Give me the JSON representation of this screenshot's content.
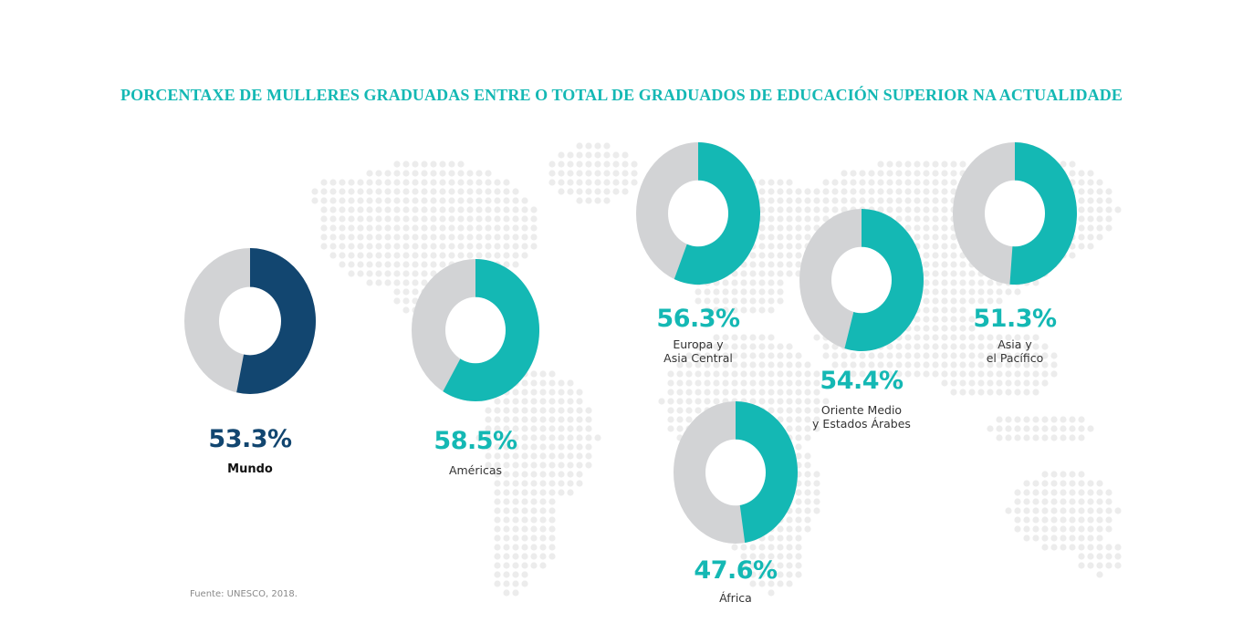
{
  "colors": {
    "title": "#14b8b4",
    "teal": "#14b8b4",
    "navy": "#124670",
    "gray": "#d2d3d5",
    "map_dot": "#ececec"
  },
  "chart_data": {
    "type": "pie",
    "title": "PORCENTAXE DE MULLERES GRADUADAS ENTRE O TOTAL DE GRADUADOS DE EDUCACIÓN SUPERIOR NA ACTUALIDADE",
    "series": [
      {
        "region": "Mundo",
        "label_lines": [
          "Mundo"
        ],
        "value": 53.3,
        "value_label": "53.3%",
        "color": "#124670"
      },
      {
        "region": "Américas",
        "label_lines": [
          "Américas"
        ],
        "value": 58.5,
        "value_label": "58.5%",
        "color": "#14b8b4"
      },
      {
        "region": "Europa y Asia Central",
        "label_lines": [
          "Europa y",
          "Asia Central"
        ],
        "value": 56.3,
        "value_label": "56.3%",
        "color": "#14b8b4"
      },
      {
        "region": "África",
        "label_lines": [
          "África"
        ],
        "value": 47.6,
        "value_label": "47.6%",
        "color": "#14b8b4"
      },
      {
        "region": "Oriente Medio y Estados Árabes",
        "label_lines": [
          "Oriente Medio",
          "y Estados Árabes"
        ],
        "value": 54.4,
        "value_label": "54.4%",
        "color": "#14b8b4"
      },
      {
        "region": "Asia y el Pacífico",
        "label_lines": [
          "Asia y",
          "el Pacífico"
        ],
        "value": 51.3,
        "value_label": "51.3%",
        "color": "#14b8b4"
      }
    ],
    "source": "Fuente: UNESCO, 2018."
  }
}
